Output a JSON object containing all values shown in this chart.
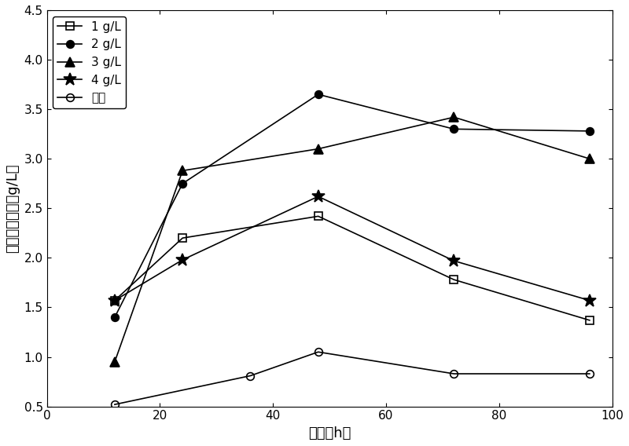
{
  "series": [
    {
      "label": "1 g/L",
      "x": [
        12,
        24,
        48,
        72,
        96
      ],
      "y": [
        1.57,
        2.2,
        2.42,
        1.78,
        1.37
      ],
      "marker": "s",
      "fillstyle": "none",
      "color": "black"
    },
    {
      "label": "2 g/L",
      "x": [
        12,
        24,
        48,
        72,
        96
      ],
      "y": [
        1.4,
        2.75,
        3.65,
        3.3,
        3.28
      ],
      "marker": "o",
      "fillstyle": "full",
      "color": "black"
    },
    {
      "label": "3 g/L",
      "x": [
        12,
        24,
        48,
        72,
        96
      ],
      "y": [
        0.95,
        2.88,
        3.1,
        3.42,
        3.0
      ],
      "marker": "^",
      "fillstyle": "full",
      "color": "black"
    },
    {
      "label": "4 g/L",
      "x": [
        12,
        24,
        48,
        72,
        96
      ],
      "y": [
        1.57,
        1.98,
        2.62,
        1.97,
        1.57
      ],
      "marker": "*",
      "fillstyle": "full",
      "color": "black"
    },
    {
      "label": "对照",
      "x": [
        12,
        36,
        48,
        72,
        96
      ],
      "y": [
        0.52,
        0.81,
        1.05,
        0.83,
        0.83
      ],
      "marker": "o",
      "fillstyle": "none",
      "color": "black"
    }
  ],
  "xlabel": "时间（h）",
  "ylabel": "挥发性脂肪酸（g/L）",
  "xlim": [
    0,
    100
  ],
  "ylim": [
    0.5,
    4.5
  ],
  "xticks": [
    0,
    20,
    40,
    60,
    80,
    100
  ],
  "yticks": [
    0.5,
    1.0,
    1.5,
    2.0,
    2.5,
    3.0,
    3.5,
    4.0,
    4.5
  ],
  "legend_loc": "upper left",
  "figsize": [
    8.0,
    5.68
  ],
  "dpi": 100
}
